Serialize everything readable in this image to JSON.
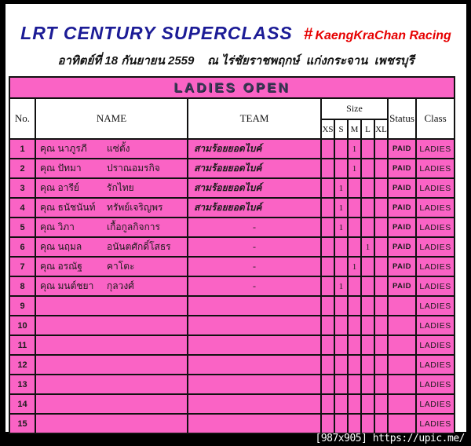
{
  "header": {
    "title": "LRT CENTURY SUPERCLASS",
    "hashtag": "#",
    "hashtag_label": "KaengKraChan Racing",
    "subtitle": "อาทิตย์ที่ 18 กันยายน 2559    ณ ไร่ชัยราชพฤกษ์  แก่งกระจาน  เพชรบุรี"
  },
  "table": {
    "caption": "LADIES OPEN",
    "columns": {
      "no": "No.",
      "name": "NAME",
      "team": "TEAM",
      "size": "Size",
      "sizes": [
        "XS",
        "S",
        "M",
        "L",
        "XL"
      ],
      "status": "Status",
      "class": "Class"
    },
    "rows": [
      {
        "no": "1",
        "first": "คุณ นาภูรภี",
        "last": "แซ่ตั้ง",
        "team": "สามร้อยยอดไบค์",
        "xs": "",
        "s": "",
        "m": "1",
        "l": "",
        "xl": "",
        "status": "PAID",
        "class": "LADIES"
      },
      {
        "no": "2",
        "first": "คุณ ปัทมา",
        "last": "ปราณอมรกิจ",
        "team": "สามร้อยยอดไบค์",
        "xs": "",
        "s": "",
        "m": "1",
        "l": "",
        "xl": "",
        "status": "PAID",
        "class": "LADIES"
      },
      {
        "no": "3",
        "first": "คุณ อารีย์",
        "last": "รักไทย",
        "team": "สามร้อยยอดไบค์",
        "xs": "",
        "s": "1",
        "m": "",
        "l": "",
        "xl": "",
        "status": "PAID",
        "class": "LADIES"
      },
      {
        "no": "4",
        "first": "คุณ ธนัชนันท์",
        "last": "ทรัพย์เจริญพร",
        "team": "สามร้อยยอดไบค์",
        "xs": "",
        "s": "1",
        "m": "",
        "l": "",
        "xl": "",
        "status": "PAID",
        "class": "LADIES"
      },
      {
        "no": "5",
        "first": "คุณ วิภา",
        "last": "เกื้อกูลกิจการ",
        "team": "-",
        "xs": "",
        "s": "1",
        "m": "",
        "l": "",
        "xl": "",
        "status": "PAID",
        "class": "LADIES"
      },
      {
        "no": "6",
        "first": "คุณ นฤมล",
        "last": "อนันตศักดิ์โสธร",
        "team": "-",
        "xs": "",
        "s": "",
        "m": "",
        "l": "1",
        "xl": "",
        "status": "PAID",
        "class": "LADIES"
      },
      {
        "no": "7",
        "first": "คุณ อรณัฐ",
        "last": "คาโตะ",
        "team": "-",
        "xs": "",
        "s": "",
        "m": "1",
        "l": "",
        "xl": "",
        "status": "PAID",
        "class": "LADIES"
      },
      {
        "no": "8",
        "first": "คุณ มนต์ชยา",
        "last": "กุลวงศ์",
        "team": "-",
        "xs": "",
        "s": "1",
        "m": "",
        "l": "",
        "xl": "",
        "status": "PAID",
        "class": "LADIES"
      },
      {
        "no": "9",
        "first": "",
        "last": "",
        "team": "",
        "xs": "",
        "s": "",
        "m": "",
        "l": "",
        "xl": "",
        "status": "",
        "class": "LADIES"
      },
      {
        "no": "10",
        "first": "",
        "last": "",
        "team": "",
        "xs": "",
        "s": "",
        "m": "",
        "l": "",
        "xl": "",
        "status": "",
        "class": "LADIES"
      },
      {
        "no": "11",
        "first": "",
        "last": "",
        "team": "",
        "xs": "",
        "s": "",
        "m": "",
        "l": "",
        "xl": "",
        "status": "",
        "class": "LADIES"
      },
      {
        "no": "12",
        "first": "",
        "last": "",
        "team": "",
        "xs": "",
        "s": "",
        "m": "",
        "l": "",
        "xl": "",
        "status": "",
        "class": "LADIES"
      },
      {
        "no": "13",
        "first": "",
        "last": "",
        "team": "",
        "xs": "",
        "s": "",
        "m": "",
        "l": "",
        "xl": "",
        "status": "",
        "class": "LADIES"
      },
      {
        "no": "14",
        "first": "",
        "last": "",
        "team": "",
        "xs": "",
        "s": "",
        "m": "",
        "l": "",
        "xl": "",
        "status": "",
        "class": "LADIES"
      },
      {
        "no": "15",
        "first": "",
        "last": "",
        "team": "",
        "xs": "",
        "s": "",
        "m": "",
        "l": "",
        "xl": "",
        "status": "",
        "class": "LADIES"
      }
    ]
  },
  "watermark": "[987x905] https://upic.me/",
  "colors": {
    "row_pink": "#fa63c5",
    "title_blue": "#1c1c96",
    "accent_red": "#e60000",
    "border_black": "#111111"
  }
}
